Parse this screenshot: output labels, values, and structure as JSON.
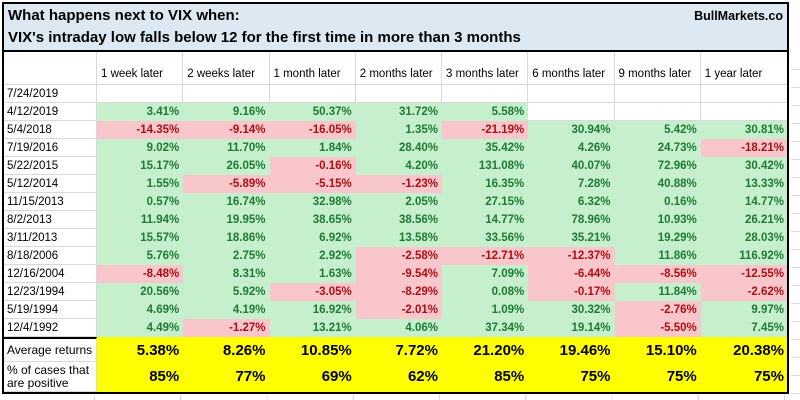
{
  "title": {
    "line1": "What happens next to VIX when:",
    "line2": "VIX's intraday low falls below 12 for the first time in more than 3 months",
    "brand": "BullMarkets.co"
  },
  "colors": {
    "title_bg": "#dce9f2",
    "positive_bg": "#c6efce",
    "positive_text": "#1e7b34",
    "negative_bg": "#f9c7cb",
    "negative_text": "#ad0e12",
    "summary_bg": "#ffff00",
    "border": "#000000",
    "gridline": "#d9d9d9"
  },
  "chart_data": {
    "type": "table",
    "columns": [
      "",
      "1 week later",
      "2 weeks later",
      "1 month later",
      "2 months later",
      "3 months later",
      "6 months later",
      "9 months later",
      "1 year later"
    ],
    "rows": [
      {
        "date": "7/24/2019",
        "values": [
          "",
          "",
          "",
          "",
          "",
          "",
          "",
          ""
        ]
      },
      {
        "date": "4/12/2019",
        "values": [
          "3.41%",
          "9.16%",
          "50.37%",
          "31.72%",
          "5.58%",
          "",
          "",
          ""
        ]
      },
      {
        "date": "5/4/2018",
        "values": [
          "-14.35%",
          "-9.14%",
          "-16.05%",
          "1.35%",
          "-21.19%",
          "30.94%",
          "5.42%",
          "30.81%"
        ]
      },
      {
        "date": "7/19/2016",
        "values": [
          "9.02%",
          "11.70%",
          "1.84%",
          "28.40%",
          "35.42%",
          "4.26%",
          "24.73%",
          "-18.21%"
        ]
      },
      {
        "date": "5/22/2015",
        "values": [
          "15.17%",
          "26.05%",
          "-0.16%",
          "4.20%",
          "131.08%",
          "40.07%",
          "72.96%",
          "30.42%"
        ]
      },
      {
        "date": "5/12/2014",
        "values": [
          "1.55%",
          "-5.89%",
          "-5.15%",
          "-1.23%",
          "16.35%",
          "7.28%",
          "40.88%",
          "13.33%"
        ]
      },
      {
        "date": "11/15/2013",
        "values": [
          "0.57%",
          "16.74%",
          "32.98%",
          "2.05%",
          "27.15%",
          "6.32%",
          "0.16%",
          "14.77%"
        ]
      },
      {
        "date": "8/2/2013",
        "values": [
          "11.94%",
          "19.95%",
          "38.65%",
          "38.56%",
          "14.77%",
          "78.96%",
          "10.93%",
          "26.21%"
        ]
      },
      {
        "date": "3/11/2013",
        "values": [
          "15.57%",
          "18.86%",
          "6.92%",
          "13.58%",
          "33.56%",
          "35.21%",
          "19.29%",
          "28.03%"
        ]
      },
      {
        "date": "8/18/2006",
        "values": [
          "5.76%",
          "2.75%",
          "2.92%",
          "-2.58%",
          "-12.71%",
          "-12.37%",
          "11.86%",
          "116.92%"
        ]
      },
      {
        "date": "12/16/2004",
        "values": [
          "-8.48%",
          "8.31%",
          "1.63%",
          "-9.54%",
          "7.09%",
          "-6.44%",
          "-8.56%",
          "-12.55%"
        ]
      },
      {
        "date": "12/23/1994",
        "values": [
          "20.56%",
          "5.92%",
          "-3.05%",
          "-8.29%",
          "0.08%",
          "-0.17%",
          "11.84%",
          "-2.62%"
        ]
      },
      {
        "date": "5/19/1994",
        "values": [
          "4.69%",
          "4.19%",
          "16.92%",
          "-2.01%",
          "1.09%",
          "30.32%",
          "-2.76%",
          "9.97%"
        ]
      },
      {
        "date": "12/4/1992",
        "values": [
          "4.49%",
          "-1.27%",
          "13.21%",
          "4.06%",
          "37.34%",
          "19.14%",
          "-5.50%",
          "7.45%"
        ]
      }
    ],
    "summary": [
      {
        "label": "Average returns",
        "values": [
          "5.38%",
          "8.26%",
          "10.85%",
          "7.72%",
          "21.20%",
          "19.46%",
          "15.10%",
          "20.38%"
        ]
      },
      {
        "label": "% of cases that are positive",
        "values": [
          "85%",
          "77%",
          "69%",
          "62%",
          "85%",
          "75%",
          "75%",
          "75%"
        ]
      }
    ]
  }
}
